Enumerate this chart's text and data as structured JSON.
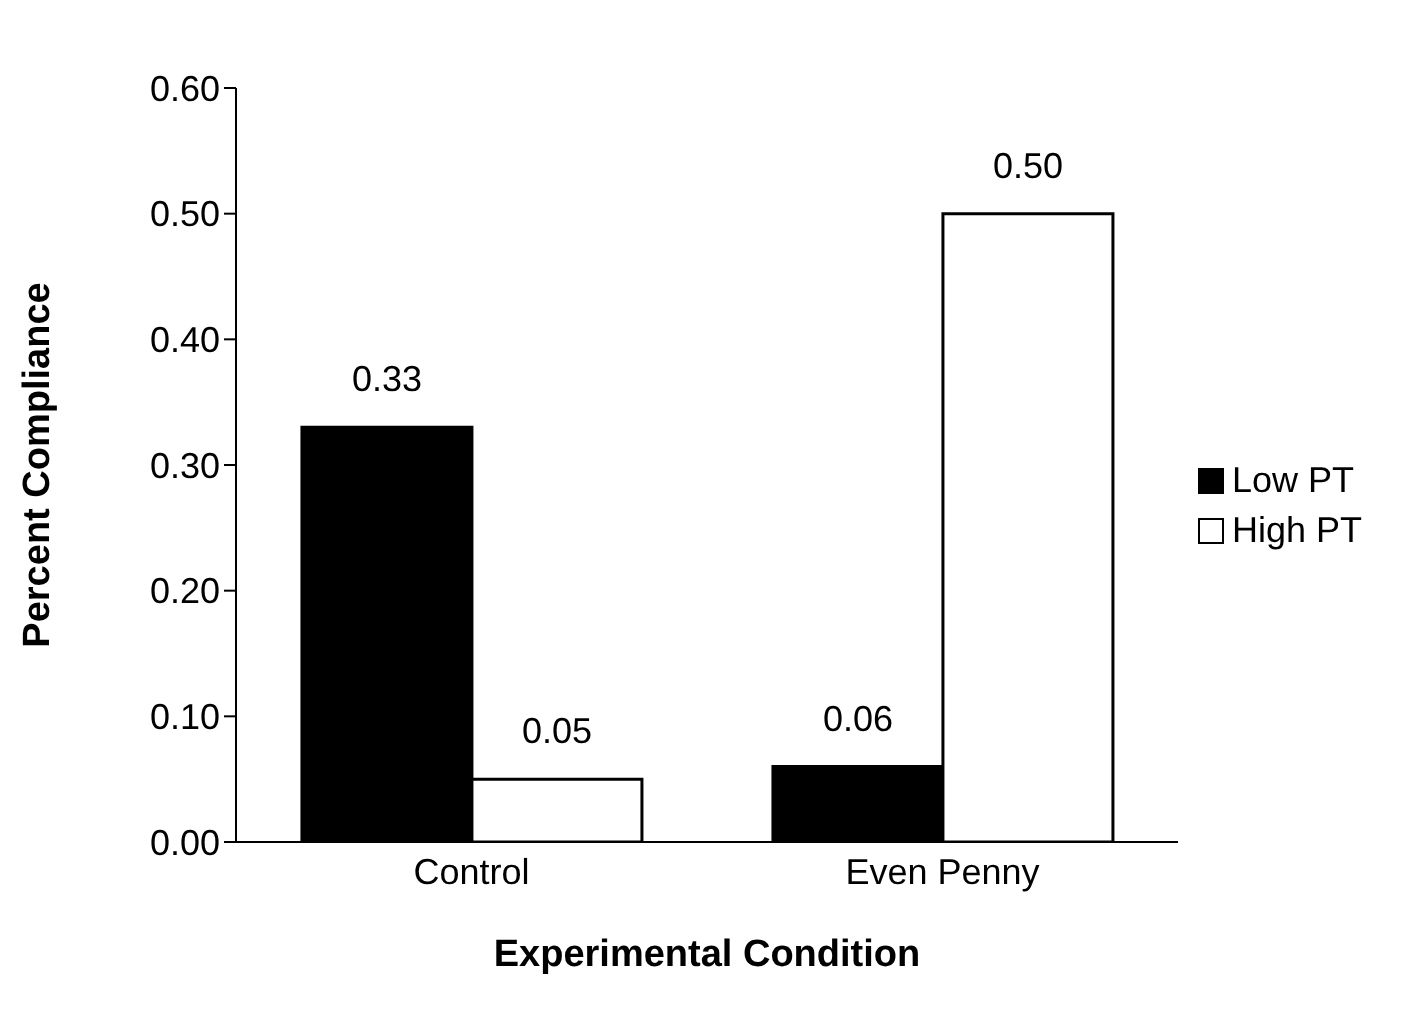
{
  "chart_data": {
    "type": "bar",
    "xlabel": "Experimental Condition",
    "ylabel": "Percent Compliance",
    "categories": [
      "Control",
      "Even Penny"
    ],
    "series": [
      {
        "name": "Low PT",
        "color": "#000000",
        "values": [
          0.33,
          0.06
        ],
        "value_labels": [
          "0.33",
          "0.06"
        ]
      },
      {
        "name": "High PT",
        "color": "#ffffff",
        "values": [
          0.05,
          0.5
        ],
        "value_labels": [
          "0.05",
          "0.50"
        ]
      }
    ],
    "ylim": [
      0,
      0.6
    ],
    "yticks": [
      {
        "value": 0,
        "label": "0.00"
      },
      {
        "value": 0.1,
        "label": "0.10"
      },
      {
        "value": 0.2,
        "label": "0.20"
      },
      {
        "value": 0.3,
        "label": "0.30"
      },
      {
        "value": 0.4,
        "label": "0.40"
      },
      {
        "value": 0.5,
        "label": "0.50"
      },
      {
        "value": 0.6,
        "label": "0.60"
      }
    ],
    "grid": false,
    "legend": "right"
  }
}
